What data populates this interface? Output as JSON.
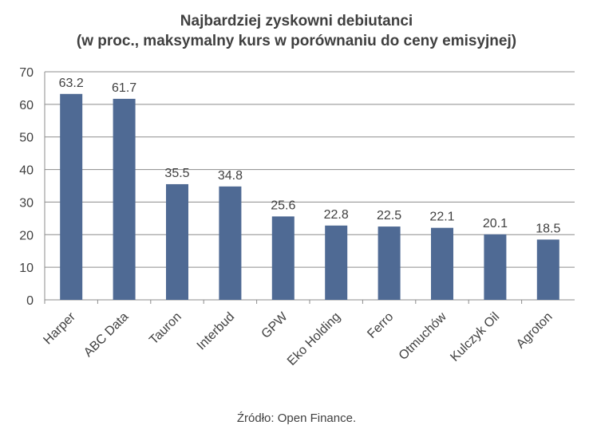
{
  "chart_data": {
    "type": "bar",
    "title": "Najbardziej zyskowni debiutanci",
    "subtitle": "(w proc., maksymalny kurs w porównaniu do ceny emisyjnej)",
    "categories": [
      "Harper",
      "ABC Data",
      "Tauron",
      "Interbud",
      "GPW",
      "Eko Holding",
      "Ferro",
      "Otmuchów",
      "Kulczyk Oil",
      "Agroton"
    ],
    "values": [
      63.2,
      61.7,
      35.5,
      34.8,
      25.6,
      22.8,
      22.5,
      22.1,
      20.1,
      18.5
    ],
    "data_labels": [
      "63.2",
      "61.7",
      "35.5",
      "34.8",
      "25.6",
      "22.8",
      "22.5",
      "22.1",
      "20.1",
      "18.5"
    ],
    "ylim": [
      0,
      70
    ],
    "yticks": [
      0,
      10,
      20,
      30,
      40,
      50,
      60,
      70
    ],
    "grid": true,
    "bar_color": "#4f6a94",
    "grid_color": "#8c8c8c",
    "source": "Źródło: Open Finance."
  }
}
